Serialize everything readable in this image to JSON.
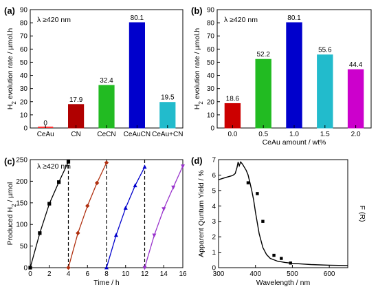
{
  "chart_data": [
    {
      "panel_label": "(a)",
      "type": "bar",
      "annotation": "λ ≥420 nm",
      "ylabel": "H2 evolution rate / µmol.h",
      "xlabel": "",
      "categories": [
        "CeAu",
        "CN",
        "CeCN",
        "CeAuCN",
        "CeAu+CN"
      ],
      "values": [
        0,
        17.9,
        32.4,
        80.1,
        19.5
      ],
      "value_labels": [
        "0",
        "17.9",
        "32.4",
        "80.1",
        "19.5"
      ],
      "ylim": [
        0,
        90
      ],
      "yticks": [
        0,
        10,
        20,
        30,
        40,
        50,
        60,
        70,
        80,
        90
      ],
      "colors": [
        "#ff3030",
        "#b00000",
        "#22bb22",
        "#0000cc",
        "#22bbcc"
      ],
      "label_colors": [
        "#ff0000",
        "#cc0000",
        "#008800",
        "#0000cc",
        "#0099aa"
      ],
      "grid": false
    },
    {
      "panel_label": "(b)",
      "type": "bar",
      "annotation": "λ ≥420 nm",
      "ylabel": "H2 evolution rate / µmol.h",
      "xlabel": "CeAu amount / wt%",
      "categories": [
        "0.0",
        "0.5",
        "1.0",
        "1.5",
        "2.0"
      ],
      "values": [
        18.6,
        52.2,
        80.1,
        55.6,
        44.4
      ],
      "value_labels": [
        "18.6",
        "52.2",
        "80.1",
        "55.6",
        "44.4"
      ],
      "ylim": [
        0,
        90
      ],
      "yticks": [
        0,
        10,
        20,
        30,
        40,
        50,
        60,
        70,
        80,
        90
      ],
      "colors": [
        "#cc0000",
        "#22bb22",
        "#0000cc",
        "#22bbcc",
        "#cc00cc"
      ],
      "label_colors": [
        "#cc0000",
        "#008800",
        "#0000cc",
        "#0099aa",
        "#aa00aa"
      ],
      "grid": false
    },
    {
      "panel_label": "(c)",
      "type": "line",
      "annotation": "λ ≥420 nm",
      "xlabel": "Time / h",
      "ylabel": "Produced H2 / µmol",
      "xlim": [
        0,
        16
      ],
      "ylim": [
        0,
        250
      ],
      "xticks": [
        0,
        2,
        4,
        6,
        8,
        10,
        12,
        14,
        16
      ],
      "yticks": [
        0,
        50,
        100,
        150,
        200,
        250
      ],
      "cycle_dividers": [
        4,
        8,
        12
      ],
      "series": [
        {
          "color": "#000000",
          "marker": "square",
          "x": [
            0,
            1,
            2,
            3,
            4
          ],
          "y": [
            0,
            80,
            148,
            198,
            245
          ]
        },
        {
          "color": "#b03010",
          "marker": "diamond",
          "x": [
            4,
            5,
            6,
            7,
            8
          ],
          "y": [
            0,
            80,
            143,
            196,
            243
          ]
        },
        {
          "color": "#0000cc",
          "marker": "triangle-up",
          "x": [
            8,
            9,
            10,
            11,
            12
          ],
          "y": [
            0,
            75,
            138,
            190,
            233
          ]
        },
        {
          "color": "#9933cc",
          "marker": "triangle-down",
          "x": [
            12,
            13,
            14,
            15,
            16
          ],
          "y": [
            0,
            75,
            136,
            186,
            235
          ]
        }
      ]
    },
    {
      "panel_label": "(d)",
      "type": "scatter",
      "xlabel": "Wavelength / nm",
      "ylabel": "Apparent Quntum Yield / %",
      "y2label": "F (R)",
      "xlim": [
        300,
        650
      ],
      "ylim": [
        0,
        7
      ],
      "xticks": [
        300,
        400,
        500,
        600
      ],
      "yticks": [
        0,
        1,
        2,
        3,
        4,
        5,
        6,
        7
      ],
      "points": {
        "x": [
          380,
          405,
          420,
          450,
          470,
          495
        ],
        "y": [
          5.5,
          4.8,
          3.0,
          0.8,
          0.6,
          0.3
        ]
      },
      "absorption_curve": {
        "x": [
          300,
          320,
          335,
          340,
          345,
          350,
          353,
          356,
          360,
          365,
          370,
          375,
          380,
          385,
          390,
          395,
          400,
          405,
          410,
          420,
          430,
          440,
          460,
          480,
          500,
          550,
          600,
          650
        ],
        "y": [
          5.7,
          5.85,
          5.95,
          6.0,
          6.1,
          6.5,
          6.85,
          6.6,
          6.85,
          6.7,
          6.5,
          6.3,
          6.0,
          5.5,
          5.0,
          4.4,
          3.6,
          2.9,
          2.2,
          1.3,
          0.85,
          0.6,
          0.42,
          0.34,
          0.28,
          0.2,
          0.16,
          0.14
        ]
      }
    }
  ]
}
